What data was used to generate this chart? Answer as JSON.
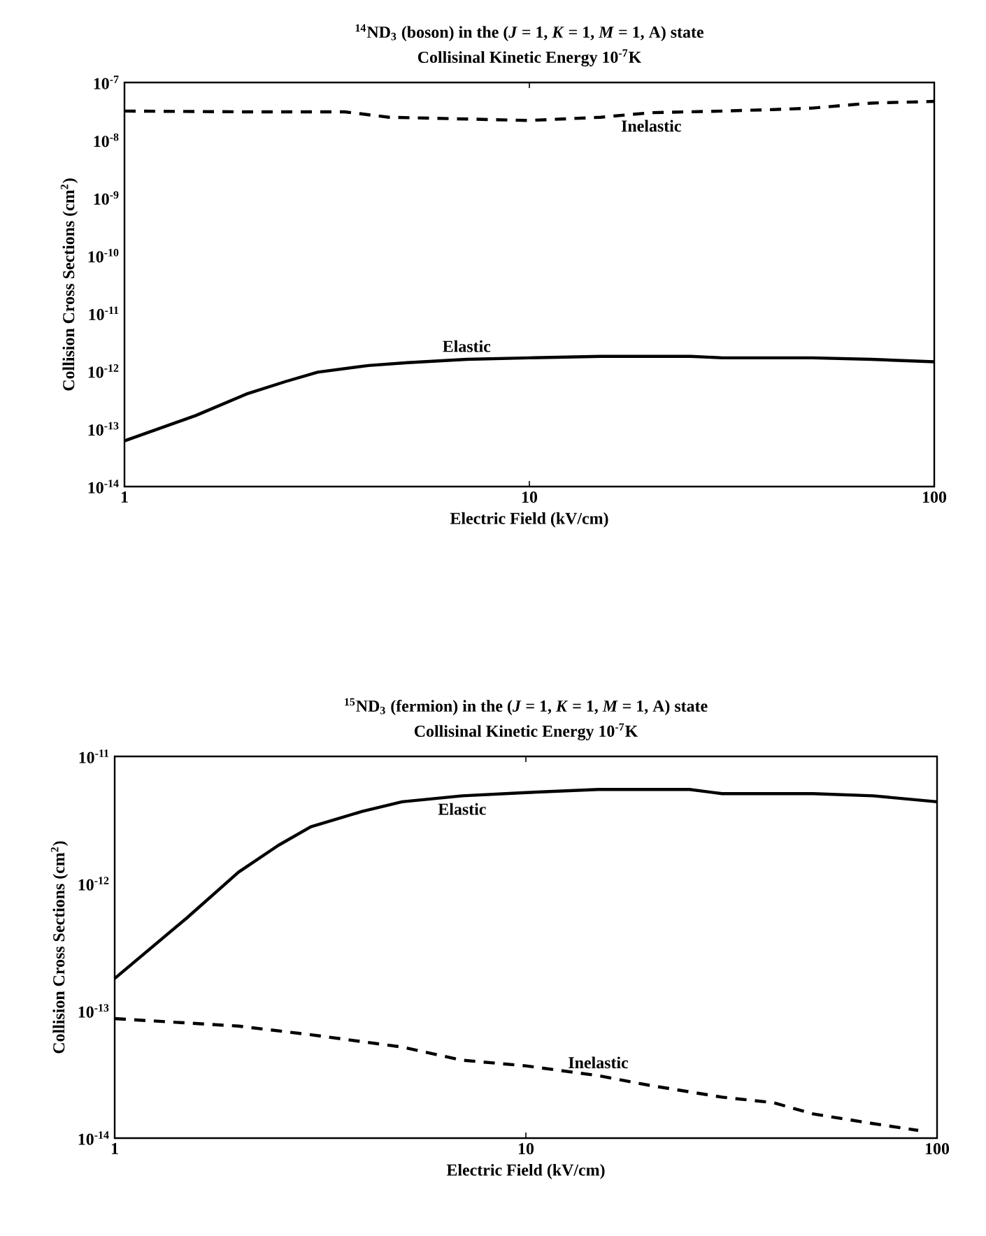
{
  "chart_data": [
    {
      "type": "line",
      "title": "$^{14}$ND$_{3}$ (boson) in the (*J* = 1, *K* = 1, *M* = 1, A) state",
      "subtitle": "Collisinal Kinetic Energy 10$^{-7}$K",
      "xlabel": "Electric Field (kV/cm)",
      "ylabel": "Collision Cross Sections (cm$^{2}$)",
      "log": "xy",
      "grid": false,
      "legend": false,
      "marker": "none",
      "xlim": [
        1,
        100
      ],
      "xticks": [
        1,
        10,
        100
      ],
      "ylim": [
        1e-14,
        1e-07
      ],
      "yticks": [
        {
          "value": 1e-14,
          "label": "10$^{-14}$"
        },
        {
          "value": 1e-13,
          "label": "10$^{-13}$"
        },
        {
          "value": 1e-12,
          "label": "10$^{-12}$"
        },
        {
          "value": 1e-11,
          "label": "10$^{-11}$"
        },
        {
          "value": 1e-10,
          "label": "10$^{-10}$"
        },
        {
          "value": 1e-09,
          "label": "10$^{-9}$"
        },
        {
          "value": 1e-08,
          "label": "10$^{-8}$"
        },
        {
          "value": 1e-07,
          "label": "10$^{-7}$"
        }
      ],
      "series": [
        {
          "name": "Inelastic",
          "color": "#000000",
          "line_style": "dashed",
          "x": [
            1,
            2,
            3.5,
            4.5,
            10,
            15,
            20,
            30,
            40,
            50,
            70,
            100
          ],
          "values": [
            3.2e-08,
            3.1e-08,
            3.1e-08,
            2.5e-08,
            2.2e-08,
            2.5e-08,
            3e-08,
            3.2e-08,
            3.4e-08,
            3.6e-08,
            4.4e-08,
            4.7e-08
          ]
        },
        {
          "name": "Elastic",
          "color": "#000000",
          "line_style": "solid",
          "x": [
            1,
            1.5,
            2,
            2.5,
            3,
            4,
            5,
            7,
            10,
            15,
            25,
            30,
            50,
            70,
            100
          ],
          "values": [
            6.2e-14,
            1.7e-13,
            4e-13,
            6.6e-13,
            9.6e-13,
            1.25e-12,
            1.4e-12,
            1.6e-12,
            1.7e-12,
            1.8e-12,
            1.8e-12,
            1.7e-12,
            1.7e-12,
            1.6e-12,
            1.45e-12
          ]
        }
      ]
    },
    {
      "type": "line",
      "title": "$^{15}$ND$_{3}$ (fermion) in the (*J* = 1, *K* = 1, *M* = 1, A) state",
      "subtitle": "Collisinal Kinetic Energy 10$^{-7}$K",
      "xlabel": "Electric Field (kV/cm)",
      "ylabel": "Collision Cross Sections (cm$^{2}$)",
      "log": "xy",
      "grid": false,
      "legend": false,
      "marker": "none",
      "xlim": [
        1,
        100
      ],
      "xticks": [
        1,
        10,
        100
      ],
      "ylim": [
        1e-14,
        1e-11
      ],
      "yticks": [
        {
          "value": 1e-14,
          "label": "10$^{-14}$"
        },
        {
          "value": 1e-13,
          "label": "10$^{-13}$"
        },
        {
          "value": 1e-12,
          "label": "10$^{-12}$"
        },
        {
          "value": 1e-11,
          "label": "10$^{-11}$"
        }
      ],
      "series": [
        {
          "name": "Elastic",
          "color": "#000000",
          "line_style": "solid",
          "x": [
            1,
            1.5,
            2,
            2.5,
            3,
            4,
            5,
            7,
            10,
            15,
            25,
            30,
            50,
            70,
            100
          ],
          "values": [
            1.8e-13,
            5.4e-13,
            1.23e-12,
            2e-12,
            2.8e-12,
            3.7e-12,
            4.4e-12,
            4.9e-12,
            5.2e-12,
            5.5e-12,
            5.5e-12,
            5.1e-12,
            5.1e-12,
            4.9e-12,
            4.4e-12
          ]
        },
        {
          "name": "Inelastic",
          "color": "#000000",
          "line_style": "dashed",
          "x": [
            1,
            2,
            3,
            5,
            7,
            10,
            15,
            20,
            30,
            40,
            50,
            70,
            90
          ],
          "values": [
            8.7e-14,
            7.6e-14,
            6.5e-14,
            5.2e-14,
            4.1e-14,
            3.7e-14,
            3.1e-14,
            2.6e-14,
            2.1e-14,
            1.9e-14,
            1.55e-14,
            1.3e-14,
            1.15e-14
          ]
        }
      ]
    }
  ]
}
